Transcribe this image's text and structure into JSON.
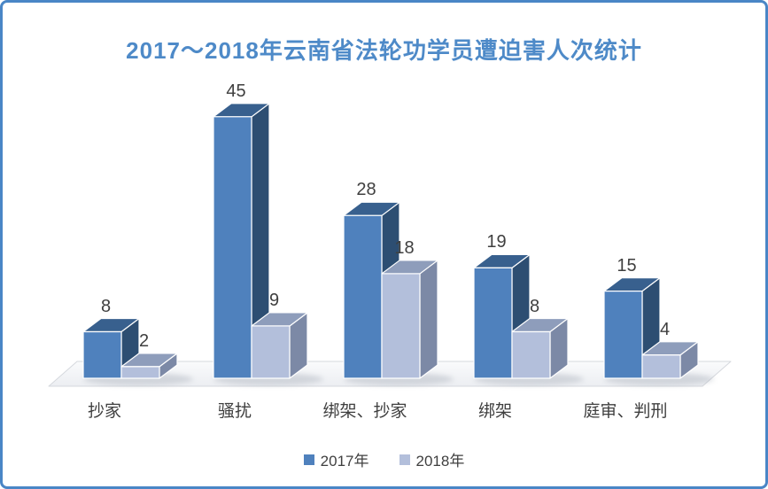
{
  "frame": {
    "border_color": "#4a86c6",
    "background": "#ffffff"
  },
  "chart_data": {
    "type": "bar",
    "variant": "3d-clustered-column",
    "title": "2017～2018年云南省法轮功学员遭迫害人次统计",
    "title_color": "#4e8ac8",
    "categories": [
      "抄家",
      "骚扰",
      "绑架、抄家",
      "绑架",
      "庭审、判刑"
    ],
    "series": [
      {
        "name": "2017年",
        "values": [
          8,
          45,
          28,
          19,
          15
        ],
        "colors": {
          "front": "#4f81bd",
          "top": "#38608e",
          "side": "#2d4e72"
        }
      },
      {
        "name": "2018年",
        "values": [
          2,
          9,
          18,
          8,
          4
        ],
        "colors": {
          "front": "#b3bfdb",
          "top": "#8e9dbb",
          "side": "#7c89a6"
        }
      }
    ],
    "value_labels": true,
    "label_color": "#3f3f3f",
    "legend_position": "bottom",
    "xlabel": "",
    "ylabel": "",
    "ylim": [
      0,
      45
    ],
    "grid": false,
    "y_axis_visible": false,
    "floor_color": "#f1f2f5"
  }
}
